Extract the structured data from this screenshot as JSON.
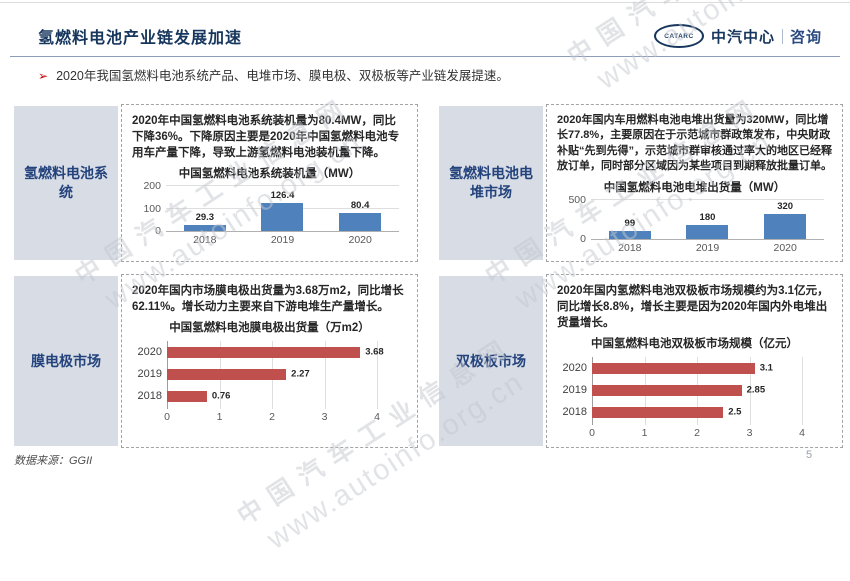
{
  "header": {
    "title": "氢燃料电池产业链发展加速",
    "logo": {
      "badge": "CATARC",
      "brand": "中汽中心",
      "suffix": "咨询"
    }
  },
  "bullet": {
    "marker": "➢",
    "text": "2020年我国氢燃料电池系统产品、电堆市场、膜电极、双极板等产业链发展提速。"
  },
  "quadrants": [
    {
      "label": "氢燃料电池系统",
      "description": "2020年中国氢燃料电池系统装机量为80.4MW，同比下降36%。下降原因主要是2020年中国氢燃料电池专用车产量下降，导致上游氢燃料电池装机量下降。"
    },
    {
      "label": "氢燃料电池电堆市场",
      "description": "2020年国内车用燃料电池电堆出货量为320MW，同比增长77.8%，主要原因在于示范城市群政策发布，中央财政补贴“先到先得”，示范城市群审核通过率大的地区已经释放订单，同时部分区域因为某些项目到期释放批量订单。"
    },
    {
      "label": "膜电极市场",
      "description": "2020年国内市场膜电极出货量为3.68万m2，同比增长62.11%。增长动力主要来自下游电堆生产量增长。"
    },
    {
      "label": "双极板市场",
      "description": "2020年国内氢燃料电池双极板市场规模约为3.1亿元，同比增长8.8%，增长主要是因为2020年国内外电堆出货量增长。"
    }
  ],
  "chart_data": [
    {
      "type": "bar",
      "orientation": "vertical",
      "title": "中国氢燃料电池系统装机量（MW）",
      "categories": [
        "2018",
        "2019",
        "2020"
      ],
      "values": [
        29.3,
        126.4,
        80.4
      ],
      "yticks": [
        0,
        100,
        200
      ],
      "ylim": [
        0,
        200
      ],
      "bar_color": "#4f81bd",
      "grid": true,
      "legend": "none"
    },
    {
      "type": "bar",
      "orientation": "vertical",
      "title": "中国氢燃料电池电堆出货量（MW）",
      "categories": [
        "2018",
        "2019",
        "2020"
      ],
      "values": [
        99,
        180,
        320
      ],
      "yticks": [
        0,
        500
      ],
      "ylim": [
        0,
        500
      ],
      "bar_color": "#4f81bd",
      "grid": true,
      "legend": "none"
    },
    {
      "type": "bar",
      "orientation": "horizontal",
      "title": "中国氢燃料电池膜电极出货量（万m2）",
      "categories": [
        "2020",
        "2019",
        "2018"
      ],
      "values": [
        3.68,
        2.27,
        0.76
      ],
      "xticks": [
        0,
        1,
        2,
        3,
        4
      ],
      "xlim": [
        0,
        4
      ],
      "bar_color": "#c0504d",
      "grid": true,
      "legend": "none"
    },
    {
      "type": "bar",
      "orientation": "horizontal",
      "title": "中国氢燃料电池双极板市场规模（亿元）",
      "categories": [
        "2020",
        "2019",
        "2018"
      ],
      "values": [
        3.1,
        2.85,
        2.5
      ],
      "xticks": [
        0,
        1,
        2,
        3,
        4
      ],
      "xlim": [
        0,
        4
      ],
      "bar_color": "#c0504d",
      "grid": true,
      "legend": "none"
    }
  ],
  "watermark": {
    "line1": "中国汽车工业信息网",
    "line2": "www.autoinfo.org.cn"
  },
  "footer": {
    "source": "数据来源：GGII",
    "page": "5"
  },
  "colors": {
    "accent_navy": "#17365d",
    "bullet_red": "#c00000",
    "bar_blue": "#4f81bd",
    "bar_red": "#c0504d",
    "label_bg": "#d7dce5"
  }
}
